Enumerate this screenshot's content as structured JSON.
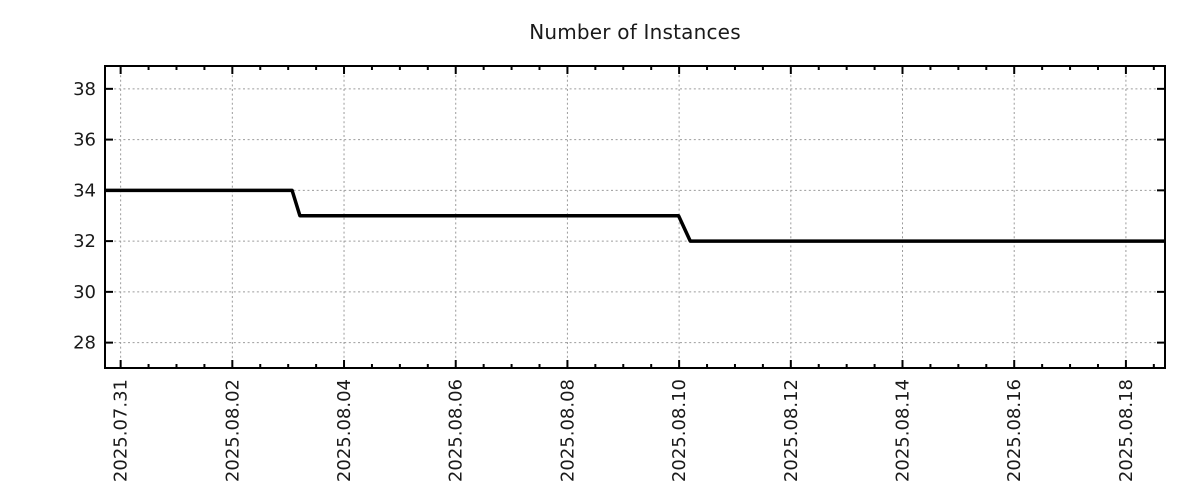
{
  "chart_data": {
    "type": "line",
    "title": "Number of Instances",
    "xlabel": "",
    "ylabel": "",
    "legend": "none",
    "grid": "dotted gray grid at major ticks, both axes",
    "x_unit": "days since 2025.07.31 00:00",
    "xlim": [
      -0.28,
      18.7
    ],
    "ylim": [
      27.0,
      38.9
    ],
    "x_major_ticks": [
      {
        "pos": 0,
        "label": "2025.07.31"
      },
      {
        "pos": 2,
        "label": "2025.08.02"
      },
      {
        "pos": 4,
        "label": "2025.08.04"
      },
      {
        "pos": 6,
        "label": "2025.08.06"
      },
      {
        "pos": 8,
        "label": "2025.08.08"
      },
      {
        "pos": 10,
        "label": "2025.08.10"
      },
      {
        "pos": 12,
        "label": "2025.08.12"
      },
      {
        "pos": 14,
        "label": "2025.08.14"
      },
      {
        "pos": 16,
        "label": "2025.08.16"
      },
      {
        "pos": 18,
        "label": "2025.08.18"
      }
    ],
    "x_minor_step": 0.5,
    "y_major_ticks": [
      28,
      30,
      32,
      34,
      36,
      38
    ],
    "series": [
      {
        "name": "Number of Instances",
        "color": "#000000",
        "line_width": 3.5,
        "points": [
          [
            -0.28,
            34
          ],
          [
            3.07,
            34
          ],
          [
            3.21,
            33
          ],
          [
            9.99,
            33
          ],
          [
            10.2,
            32
          ],
          [
            18.7,
            32
          ]
        ]
      }
    ],
    "steps_readable": [
      {
        "value": 34,
        "from": "2025.07.31 (plot start)",
        "to": "2025.08.03 ~01:30"
      },
      {
        "value": 33,
        "from": "2025.08.03 ~05:00",
        "to": "2025.08.10 ~00:00"
      },
      {
        "value": 32,
        "from": "2025.08.10 ~05:00",
        "to": "plot end (~2025.08.18 17:00)"
      }
    ]
  },
  "colors": {
    "line": "#000000",
    "grid": "#9c9c9c",
    "border": "#000000",
    "text": "#1a1a1a",
    "background": "#ffffff"
  }
}
